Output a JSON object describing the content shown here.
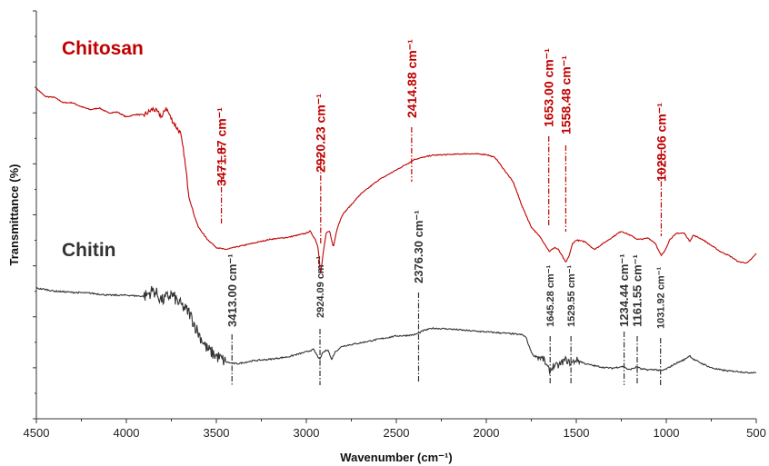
{
  "chart_data": {
    "type": "line",
    "title": "",
    "xlabel": "Wavenumber (cm⁻¹)",
    "ylabel": "Transmittance (%)",
    "xlim": [
      4500,
      500
    ],
    "x_reversed": true,
    "xticks": [
      4500,
      4000,
      3500,
      3000,
      2500,
      2000,
      1500,
      1000,
      500
    ],
    "ylim": [
      0,
      100
    ],
    "y_tick_labels": false,
    "grid": false,
    "series": [
      {
        "name": "Chitosan",
        "color": "#c00000",
        "points": [
          [
            4500,
            81
          ],
          [
            4450,
            79
          ],
          [
            4400,
            78.8
          ],
          [
            4350,
            77.5
          ],
          [
            4300,
            77.5
          ],
          [
            4250,
            76.5
          ],
          [
            4200,
            75.8
          ],
          [
            4150,
            76.2
          ],
          [
            4100,
            75
          ],
          [
            4050,
            75.2
          ],
          [
            4000,
            74
          ],
          [
            3950,
            74.6
          ],
          [
            3900,
            74.5
          ],
          [
            3850,
            76
          ],
          [
            3800,
            74
          ],
          [
            3780,
            76.4
          ],
          [
            3750,
            73.5
          ],
          [
            3700,
            70
          ],
          [
            3680,
            65
          ],
          [
            3650,
            54
          ],
          [
            3620,
            49.5
          ],
          [
            3600,
            47
          ],
          [
            3550,
            44
          ],
          [
            3500,
            42
          ],
          [
            3450,
            41.5
          ],
          [
            3400,
            42
          ],
          [
            3300,
            43
          ],
          [
            3200,
            44
          ],
          [
            3100,
            44.5
          ],
          [
            3000,
            45.5
          ],
          [
            2980,
            46
          ],
          [
            2950,
            44
          ],
          [
            2935,
            42
          ],
          [
            2920,
            35.5
          ],
          [
            2905,
            41
          ],
          [
            2890,
            45.5
          ],
          [
            2870,
            46
          ],
          [
            2850,
            42
          ],
          [
            2830,
            46.5
          ],
          [
            2800,
            50
          ],
          [
            2700,
            55
          ],
          [
            2600,
            58.5
          ],
          [
            2500,
            61
          ],
          [
            2420,
            63
          ],
          [
            2400,
            63.6
          ],
          [
            2300,
            64.6
          ],
          [
            2200,
            64.8
          ],
          [
            2100,
            65
          ],
          [
            2000,
            64.8
          ],
          [
            1950,
            64
          ],
          [
            1900,
            61
          ],
          [
            1850,
            58
          ],
          [
            1800,
            52
          ],
          [
            1750,
            47
          ],
          [
            1700,
            44.5
          ],
          [
            1670,
            42.5
          ],
          [
            1650,
            41
          ],
          [
            1620,
            42
          ],
          [
            1600,
            41.5
          ],
          [
            1580,
            40
          ],
          [
            1558,
            38.3
          ],
          [
            1540,
            40
          ],
          [
            1520,
            43
          ],
          [
            1500,
            43.8
          ],
          [
            1450,
            43.4
          ],
          [
            1400,
            41.5
          ],
          [
            1350,
            43
          ],
          [
            1300,
            44.5
          ],
          [
            1250,
            46
          ],
          [
            1200,
            45
          ],
          [
            1160,
            44
          ],
          [
            1140,
            44
          ],
          [
            1100,
            44.3
          ],
          [
            1060,
            43
          ],
          [
            1040,
            41
          ],
          [
            1028,
            40
          ],
          [
            1010,
            41
          ],
          [
            980,
            44
          ],
          [
            940,
            45.5
          ],
          [
            900,
            45.5
          ],
          [
            870,
            43.5
          ],
          [
            850,
            45
          ],
          [
            800,
            44
          ],
          [
            750,
            42.5
          ],
          [
            700,
            41
          ],
          [
            650,
            40
          ],
          [
            600,
            38.5
          ],
          [
            550,
            38.2
          ],
          [
            520,
            39.5
          ],
          [
            500,
            40.5
          ]
        ]
      },
      {
        "name": "Chitin",
        "color": "#333333",
        "points": [
          [
            4500,
            32
          ],
          [
            4450,
            31.7
          ],
          [
            4400,
            31.3
          ],
          [
            4300,
            31
          ],
          [
            4200,
            30.8
          ],
          [
            4100,
            30.3
          ],
          [
            4000,
            30.3
          ],
          [
            3900,
            30
          ],
          [
            3850,
            31.5
          ],
          [
            3800,
            29
          ],
          [
            3750,
            30.5
          ],
          [
            3700,
            28
          ],
          [
            3650,
            26
          ],
          [
            3600,
            21
          ],
          [
            3550,
            17
          ],
          [
            3500,
            15.4
          ],
          [
            3450,
            14
          ],
          [
            3413,
            13.6
          ],
          [
            3380,
            13.5
          ],
          [
            3300,
            14.2
          ],
          [
            3200,
            14.6
          ],
          [
            3100,
            15.2
          ],
          [
            3000,
            16.4
          ],
          [
            2960,
            17
          ],
          [
            2940,
            15.5
          ],
          [
            2924,
            14.5
          ],
          [
            2910,
            16.2
          ],
          [
            2880,
            17
          ],
          [
            2860,
            14.5
          ],
          [
            2840,
            16.4
          ],
          [
            2800,
            17.8
          ],
          [
            2700,
            18.6
          ],
          [
            2600,
            19.5
          ],
          [
            2500,
            20.3
          ],
          [
            2450,
            20.4
          ],
          [
            2400,
            20.6
          ],
          [
            2376,
            21
          ],
          [
            2350,
            21.6
          ],
          [
            2300,
            22.2
          ],
          [
            2200,
            22
          ],
          [
            2100,
            21.6
          ],
          [
            2000,
            21.3
          ],
          [
            1900,
            21
          ],
          [
            1800,
            20.6
          ],
          [
            1780,
            20
          ],
          [
            1760,
            17.5
          ],
          [
            1740,
            15.5
          ],
          [
            1700,
            15
          ],
          [
            1680,
            14.5
          ],
          [
            1660,
            12.5
          ],
          [
            1645,
            11.5
          ],
          [
            1630,
            13
          ],
          [
            1600,
            13
          ],
          [
            1560,
            14.5
          ],
          [
            1529,
            13.5
          ],
          [
            1500,
            14.5
          ],
          [
            1450,
            13.5
          ],
          [
            1400,
            13
          ],
          [
            1350,
            12.6
          ],
          [
            1300,
            12.4
          ],
          [
            1250,
            12.8
          ],
          [
            1234,
            12.8
          ],
          [
            1210,
            12
          ],
          [
            1180,
            12.4
          ],
          [
            1161,
            12.8
          ],
          [
            1140,
            12.2
          ],
          [
            1100,
            12
          ],
          [
            1060,
            12.1
          ],
          [
            1031,
            11.7
          ],
          [
            1000,
            12.2
          ],
          [
            950,
            13.5
          ],
          [
            900,
            14.5
          ],
          [
            870,
            15.5
          ],
          [
            850,
            14.6
          ],
          [
            800,
            13.5
          ],
          [
            750,
            12.5
          ],
          [
            700,
            12
          ],
          [
            650,
            11.7
          ],
          [
            600,
            11.6
          ],
          [
            550,
            11.3
          ],
          [
            500,
            11.4
          ]
        ]
      }
    ],
    "peak_annotations": [
      {
        "series": "Chitosan",
        "label": "3471.87 cm⁻¹",
        "x": 3471.87
      },
      {
        "series": "Chitosan",
        "label": "2920.23 cm⁻¹",
        "x": 2920.23
      },
      {
        "series": "Chitosan",
        "label": "2414.88 cm⁻¹",
        "x": 2414.88
      },
      {
        "series": "Chitosan",
        "label": "1653.00 cm⁻¹",
        "x": 1653.0
      },
      {
        "series": "Chitosan",
        "label": "1558.48 cm⁻¹",
        "x": 1558.48
      },
      {
        "series": "Chitosan",
        "label": "1028.06 cm⁻¹",
        "x": 1028.06
      },
      {
        "series": "Chitin",
        "label": "3413.00 cm⁻¹",
        "x": 3413.0
      },
      {
        "series": "Chitin",
        "label": "2924.09 cm⁻¹",
        "x": 2924.09
      },
      {
        "series": "Chitin",
        "label": "2376.30 cm⁻¹",
        "x": 2376.3
      },
      {
        "series": "Chitin",
        "label": "1645.28 cm⁻¹",
        "x": 1645.28
      },
      {
        "series": "Chitin",
        "label": "1529.55 cm⁻¹",
        "x": 1529.55
      },
      {
        "series": "Chitin",
        "label": "1234.44 cm⁻¹",
        "x": 1234.44
      },
      {
        "series": "Chitin",
        "label": "1161.55 cm⁻¹",
        "x": 1161.55
      },
      {
        "series": "Chitin",
        "label": "1031.92 cm⁻¹",
        "x": 1031.92
      }
    ]
  }
}
